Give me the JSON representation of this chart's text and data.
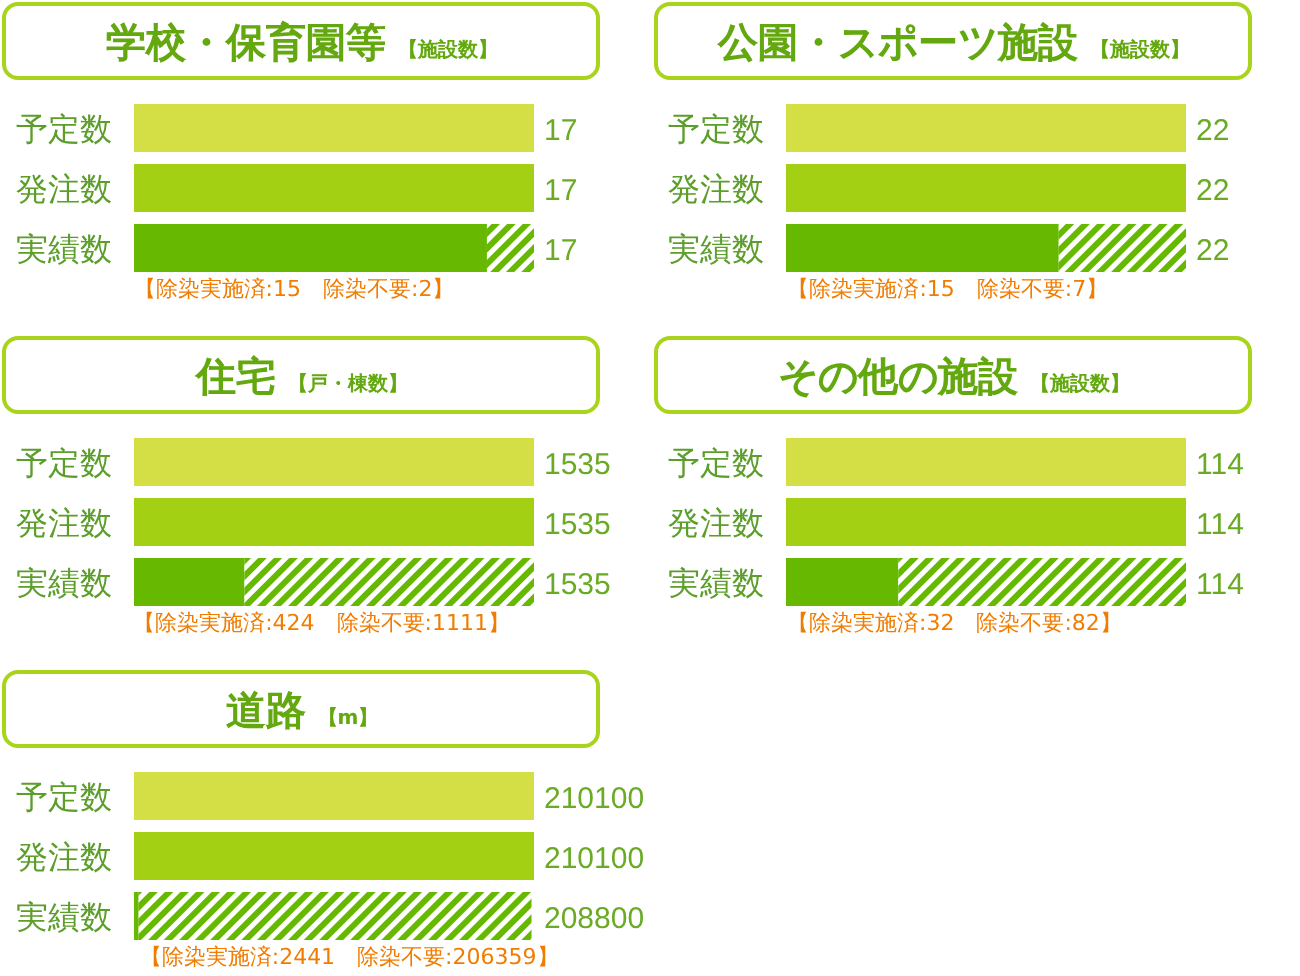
{
  "chart_data": [
    {
      "type": "bar",
      "orientation": "horizontal",
      "stacked": true,
      "title": "学校・保育園等",
      "subtitle": "【施設数】",
      "categories": [
        "予定数",
        "発注数",
        "実績数"
      ],
      "series": [
        {
          "colors": [
            "#d4df45",
            "#a3d012",
            "#66b800"
          ],
          "values": [
            17,
            17,
            15
          ],
          "value_labels": [
            "17",
            "17",
            null
          ]
        },
        {
          "color": "#66b800",
          "values": [
            null,
            null,
            2
          ]
        }
      ],
      "totals": [
        null,
        null,
        "17"
      ],
      "annotations": [
        {
          "text": "【除染実施済:15　除染不要:2】",
          "x": 6.8,
          "y": "実績数"
        }
      ]
    },
    {
      "type": "bar",
      "orientation": "horizontal",
      "stacked": true,
      "title": "公園・スポーツ施設",
      "subtitle": "【施設数】",
      "categories": [
        "予定数",
        "発注数",
        "実績数"
      ],
      "series": [
        {
          "colors": [
            "#d4df45",
            "#a3d012",
            "#66b800"
          ],
          "values": [
            22,
            22,
            15
          ],
          "value_labels": [
            "22",
            "22",
            null
          ]
        },
        {
          "color": "#66b800",
          "values": [
            null,
            null,
            7
          ]
        }
      ],
      "totals": [
        null,
        null,
        "22"
      ],
      "annotations": [
        {
          "text": "【除染実施済:15　除染不要:7】",
          "x": 8.9,
          "y": "実績数"
        }
      ]
    },
    {
      "type": "bar",
      "orientation": "horizontal",
      "stacked": true,
      "title": "住宅",
      "subtitle": "【戸・棟数】",
      "categories": [
        "予定数",
        "発注数",
        "実績数"
      ],
      "series": [
        {
          "colors": [
            "#d4df45",
            "#a3d012",
            "#66b800"
          ],
          "values": [
            1535,
            1535,
            424
          ],
          "value_labels": [
            "1535",
            "1535",
            null
          ]
        },
        {
          "color": "#66b800",
          "values": [
            null,
            null,
            1111
          ]
        }
      ],
      "totals": [
        null,
        null,
        "1535"
      ],
      "annotations": [
        {
          "text": "【除染実施済:424　除染不要:1111】",
          "x": 720,
          "y": "実績数"
        }
      ]
    },
    {
      "type": "bar",
      "orientation": "horizontal",
      "stacked": true,
      "title": "その他の施設",
      "subtitle": "【施設数】",
      "categories": [
        "予定数",
        "発注数",
        "実績数"
      ],
      "series": [
        {
          "colors": [
            "#d4df45",
            "#a3d012",
            "#66b800"
          ],
          "values": [
            114,
            114,
            32
          ],
          "value_labels": [
            "114",
            "114",
            null
          ]
        },
        {
          "color": "#66b800",
          "values": [
            null,
            null,
            82
          ]
        }
      ],
      "totals": [
        null,
        null,
        "114"
      ],
      "annotations": [
        {
          "text": "【除染実施済:32　除染不要:82】",
          "x": 48,
          "y": "実績数"
        }
      ]
    },
    {
      "type": "bar",
      "orientation": "horizontal",
      "stacked": true,
      "title": "道路",
      "subtitle": "【m】",
      "categories": [
        "予定数",
        "発注数",
        "実績数"
      ],
      "series": [
        {
          "colors": [
            "#d4df45",
            "#a3d012",
            "#66b800"
          ],
          "values": [
            210100,
            210100,
            2441
          ],
          "value_labels": [
            "210100",
            "210100",
            null
          ]
        },
        {
          "color": "#66b800",
          "values": [
            null,
            null,
            206359
          ]
        }
      ],
      "totals": [
        null,
        null,
        "208800"
      ],
      "annotations": [
        {
          "text": "【除染実施済:2441　除染不要:206359】",
          "x": 113000,
          "y": "実績数"
        }
      ]
    }
  ]
}
